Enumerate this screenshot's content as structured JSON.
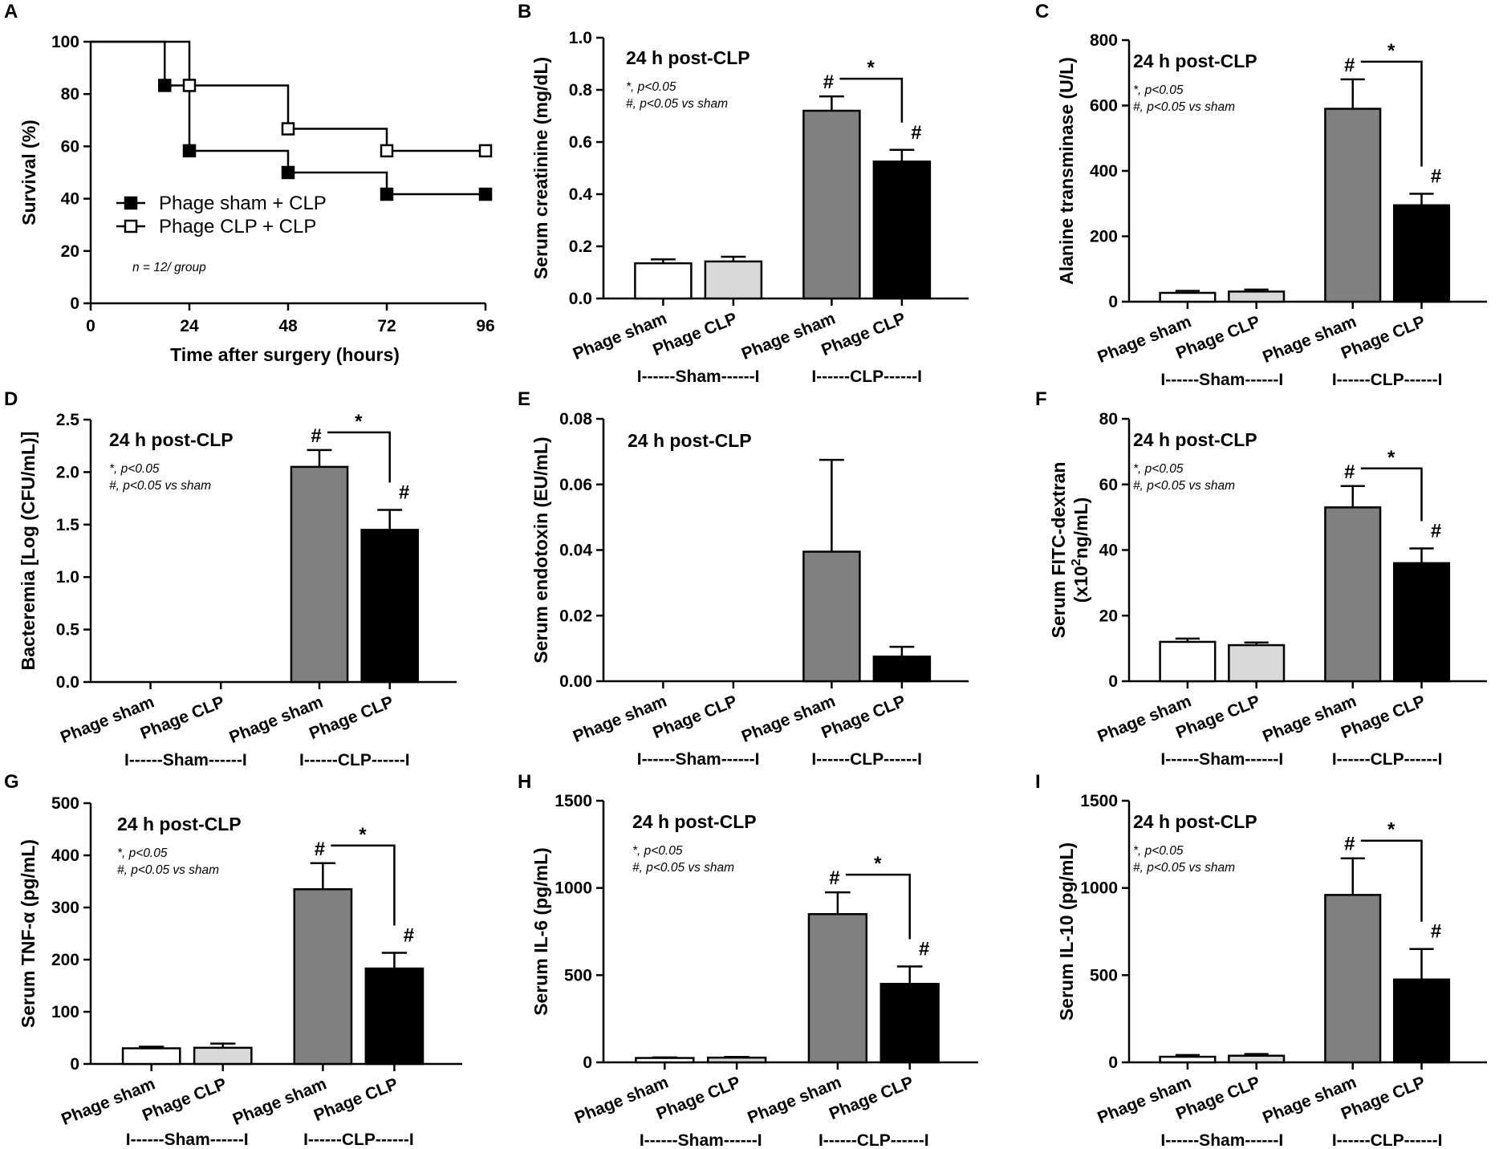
{
  "colors": {
    "phage_sham_sham": "#ffffff",
    "phage_clp_sham": "#d9d9d9",
    "phage_sham_clp": "#808080",
    "phage_clp_clp": "#000000",
    "axis": "#000000"
  },
  "chart_data": [
    {
      "id": "A",
      "type": "line",
      "step": true,
      "title": "",
      "xlabel": "Time after surgery (hours)",
      "ylabel": "Survival (%)",
      "xlim": [
        0,
        96
      ],
      "ylim": [
        0,
        100
      ],
      "xticks": [
        0,
        24,
        48,
        72,
        96
      ],
      "yticks": [
        0,
        20,
        40,
        60,
        80,
        100
      ],
      "annotation": "n = 12/ group",
      "series": [
        {
          "name": "Phage sham + CLP",
          "marker": "filled-square",
          "x": [
            0,
            18,
            24,
            48,
            72,
            96
          ],
          "y": [
            100,
            83.3,
            58.3,
            50,
            41.7,
            41.7
          ],
          "markers_x": [
            18,
            24,
            48,
            72,
            96
          ]
        },
        {
          "name": "Phage CLP + CLP",
          "marker": "open-square",
          "x": [
            0,
            24,
            48,
            72,
            96
          ],
          "y": [
            100,
            83.3,
            66.7,
            58.3,
            58.3
          ],
          "markers_x": [
            24,
            48,
            72,
            96
          ]
        }
      ]
    },
    {
      "id": "B",
      "type": "bar",
      "header": "24 h post-CLP",
      "notes": [
        "*, p<0.05",
        "#, p<0.05 vs sham"
      ],
      "ylabel": "Serum creatinine (mg/dL)",
      "ylim": [
        0,
        1.0
      ],
      "ytick_labels": [
        "0.0",
        "0.2",
        "0.4",
        "0.6",
        "0.8",
        "1.0"
      ],
      "categories": [
        "Phage sham",
        "Phage CLP",
        "Phage sham",
        "Phage CLP"
      ],
      "groups": [
        "I------Sham------I",
        "I------CLP------I"
      ],
      "values": [
        0.135,
        0.142,
        0.72,
        0.525
      ],
      "errors": [
        0.015,
        0.018,
        0.055,
        0.045
      ],
      "significance": {
        "hash_bars": [
          2,
          3
        ],
        "star": "*"
      }
    },
    {
      "id": "C",
      "type": "bar",
      "header": "24 h post-CLP",
      "notes": [
        "*, p<0.05",
        "#, p<0.05 vs sham"
      ],
      "ylabel": "Alanine transminase (U/L)",
      "ylim": [
        0,
        800
      ],
      "ytick_labels": [
        "0",
        "200",
        "400",
        "600",
        "800"
      ],
      "categories": [
        "Phage sham",
        "Phage CLP",
        "Phage sham",
        "Phage CLP"
      ],
      "groups": [
        "I------Sham------I",
        "I------CLP------I"
      ],
      "values": [
        27,
        31,
        590,
        295
      ],
      "errors": [
        6,
        6,
        90,
        35
      ],
      "significance": {
        "hash_bars": [
          2,
          3
        ],
        "star": "*"
      }
    },
    {
      "id": "D",
      "type": "bar",
      "header": "24 h post-CLP",
      "notes": [
        "*, p<0.05",
        "#, p<0.05 vs sham"
      ],
      "ylabel": "Bacteremia [Log (CFU/mL)]",
      "ylim": [
        0,
        2.5
      ],
      "ytick_labels": [
        "0.0",
        "0.5",
        "1.0",
        "1.5",
        "2.0",
        "2.5"
      ],
      "categories": [
        "Phage sham",
        "Phage CLP",
        "Phage sham",
        "Phage CLP"
      ],
      "groups": [
        "I------Sham------I",
        "I------CLP------I"
      ],
      "values": [
        0,
        0,
        2.05,
        1.45
      ],
      "errors": [
        0,
        0,
        0.16,
        0.19
      ],
      "significance": {
        "hash_bars": [
          2,
          3
        ],
        "star": "*"
      }
    },
    {
      "id": "E",
      "type": "bar",
      "header": "24 h post-CLP",
      "notes": [],
      "ylabel": "Serum endotoxin (EU/mL)",
      "ylim": [
        0,
        0.08
      ],
      "ytick_labels": [
        "0.00",
        "0.02",
        "0.04",
        "0.06",
        "0.08"
      ],
      "categories": [
        "Phage sham",
        "Phage CLP",
        "Phage sham",
        "Phage CLP"
      ],
      "groups": [
        "I------Sham------I",
        "I------CLP------I"
      ],
      "values": [
        0,
        0,
        0.0395,
        0.0075
      ],
      "errors": [
        0,
        0,
        0.028,
        0.003
      ],
      "significance": null
    },
    {
      "id": "F",
      "type": "bar",
      "header": "24 h post-CLP",
      "notes": [
        "*, p<0.05",
        "#, p<0.05 vs sham"
      ],
      "ylabel": "Serum FITC-dextran",
      "ylabel_line2": "(x10",
      "ylabel_sup": "2",
      "ylabel_line2_rest": "ng/mL)",
      "ylim": [
        0,
        80
      ],
      "ytick_labels": [
        "0",
        "20",
        "40",
        "60",
        "80"
      ],
      "categories": [
        "Phage sham",
        "Phage CLP",
        "Phage sham",
        "Phage CLP"
      ],
      "groups": [
        "I------Sham------I",
        "I------CLP------I"
      ],
      "values": [
        12,
        11,
        53,
        36
      ],
      "errors": [
        1,
        0.8,
        6.5,
        4.5
      ],
      "significance": {
        "hash_bars": [
          2,
          3
        ],
        "star": "*"
      }
    },
    {
      "id": "G",
      "type": "bar",
      "header": "24 h post-CLP",
      "notes": [
        "*, p<0.05",
        "#, p<0.05 vs sham"
      ],
      "ylabel": "Serum TNF-α (pg/mL)",
      "ylim": [
        0,
        500
      ],
      "ytick_labels": [
        "0",
        "100",
        "200",
        "300",
        "400",
        "500"
      ],
      "categories": [
        "Phage sham",
        "Phage CLP",
        "Phage sham",
        "Phage CLP"
      ],
      "groups": [
        "I------Sham------I",
        "I------CLP------I"
      ],
      "values": [
        30,
        31,
        335,
        183
      ],
      "errors": [
        3,
        8,
        50,
        30
      ],
      "significance": {
        "hash_bars": [
          2,
          3
        ],
        "star": "*"
      }
    },
    {
      "id": "H",
      "type": "bar",
      "header": "24 h post-CLP",
      "notes": [
        "*, p<0.05",
        "#, p<0.05 vs sham"
      ],
      "ylabel": "Serum IL-6 (pg/mL)",
      "ylim": [
        0,
        1500
      ],
      "ytick_labels": [
        "0",
        "500",
        "1000",
        "1500"
      ],
      "categories": [
        "Phage sham",
        "Phage CLP",
        "Phage sham",
        "Phage CLP"
      ],
      "groups": [
        "I------Sham------I",
        "I------CLP------I"
      ],
      "values": [
        25,
        27,
        850,
        450
      ],
      "errors": [
        3,
        4,
        125,
        100
      ],
      "significance": {
        "hash_bars": [
          2,
          3
        ],
        "star": "*"
      }
    },
    {
      "id": "I",
      "type": "bar",
      "header": "24 h post-CLP",
      "notes": [
        "*, p<0.05",
        "#, p<0.05 vs sham"
      ],
      "ylabel": "Serum IL-10 (pg/mL)",
      "ylim": [
        0,
        1500
      ],
      "ytick_labels": [
        "0",
        "500",
        "1000",
        "1500"
      ],
      "categories": [
        "Phage sham",
        "Phage CLP",
        "Phage sham",
        "Phage CLP"
      ],
      "groups": [
        "I------Sham------I",
        "I------CLP------I"
      ],
      "values": [
        32,
        38,
        960,
        475
      ],
      "errors": [
        10,
        10,
        210,
        175
      ],
      "significance": {
        "hash_bars": [
          2,
          3
        ],
        "star": "*"
      }
    }
  ]
}
